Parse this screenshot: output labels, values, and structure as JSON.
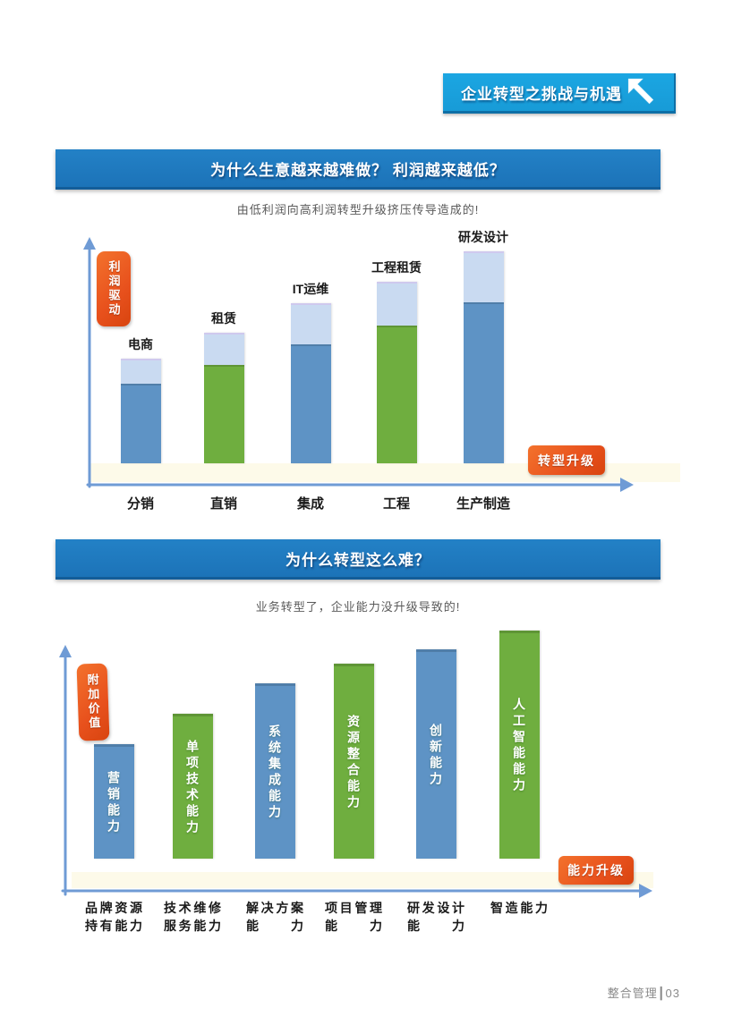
{
  "banner": {
    "title": "企业转型之挑战与机遇",
    "icon": "arrow-up-left-icon"
  },
  "sections": [
    {
      "header": "为什么生意越来越难做？ 利润越来越低？",
      "subtitle": "由低利润向高利润转型升级挤压传导造成的!"
    },
    {
      "header": "为什么转型这么难？",
      "subtitle": "业务转型了，企业能力没升级导致的!"
    }
  ],
  "chart_data": [
    {
      "type": "bar",
      "title": "为什么生意越来越难做？ 利润越来越低？",
      "subtitle": "由低利润向高利润转型升级挤压传导造成的!",
      "categories": [
        "分销",
        "直销",
        "集成",
        "工程",
        "生产制造"
      ],
      "top_labels": [
        "电商",
        "租赁",
        "IT运维",
        "工程租赁",
        "研发设计"
      ],
      "stacks": {
        "body": [
          35,
          43,
          52,
          60,
          70
        ],
        "cap": [
          10,
          13,
          17,
          18,
          21
        ]
      },
      "bar_colors": [
        "blue",
        "green",
        "blue",
        "green",
        "blue"
      ],
      "y_badge": "利润驱动",
      "x_badge": "转型升级",
      "ylim": [
        0,
        100
      ],
      "grid": false,
      "legend": false
    },
    {
      "type": "bar",
      "title": "为什么转型这么难？",
      "subtitle": "业务转型了，企业能力没升级导致的!",
      "categories": [
        [
          "品牌资源",
          "持有能力"
        ],
        [
          "技术维修",
          "服务能力"
        ],
        [
          "解决方案",
          "能力"
        ],
        [
          "项目管理",
          "能力"
        ],
        [
          "研发设计",
          "能力"
        ],
        [
          "智造能力"
        ]
      ],
      "bar_labels": [
        "营销能力",
        "单项技术能力",
        "系统集成能力",
        "资源整合能力",
        "创新能力",
        "人工智能能力"
      ],
      "values": [
        47,
        60,
        73,
        81,
        87,
        95
      ],
      "bar_colors": [
        "blue",
        "green",
        "blue",
        "green",
        "blue",
        "green"
      ],
      "y_badge": "附加价值",
      "x_badge": "能力升级",
      "ylim": [
        0,
        100
      ],
      "grid": false,
      "legend": false
    }
  ],
  "footer": {
    "text": "整合管理┃03"
  },
  "colors": {
    "blue": "#5E93C5",
    "green": "#6FAE3F",
    "cap": "#C9DAF1",
    "orange": "#E8511D",
    "header_blue": "#1C73B8",
    "banner_blue": "#189BD7",
    "axis_blue": "#6F9BD5"
  }
}
